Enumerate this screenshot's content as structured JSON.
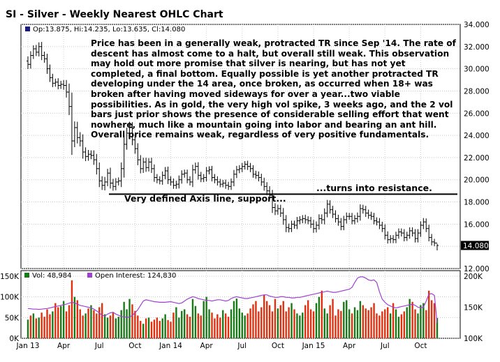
{
  "title": "SI - Silver - Weekly Nearest OHLC Chart",
  "price_header": "Op:13.875, Hi:14.235, Lo:13.635, Cl:14.080",
  "last_price_label": "14.080",
  "commentary": "Price has been in a generally weak, protracted TR since Sep '14.  The rate of descent has almost come to a halt, but overall still weak.  This observation may hold out more promise that silver is nearing, but has not yet completed, a final bottom.  Equally possible is yet another protracted TR developing under the 14 area, once broken, as occurred when 18+ was broken after having moved sideways for over a year...two viable possibilities.  As in gold, the very high vol spike, 3 weeks ago, and the 2 vol bars just prior shows the presence of considerable selling effort that went nowhere, much like a mountain going into labor and bearing an ant hill.  Overall price remains weak, regardless of very positive fundamentals.",
  "annotations": {
    "support": "Very defined Axis line, support...",
    "resistance": "...turns into resistance."
  },
  "volume_header": {
    "vol": "Vol: 48,984",
    "oi": "Open Interest: 124,830"
  },
  "colors": {
    "up_bar": "#1a7a1a",
    "down_bar": "#e03010",
    "open_interest": "#a040d0",
    "price_bar": "#000000",
    "axis_line": "#000000"
  },
  "chart_data": [
    {
      "type": "ohlc",
      "name": "price",
      "y_range": [
        12,
        34
      ],
      "y_ticks": [
        12,
        14,
        16,
        18,
        20,
        22,
        24,
        26,
        28,
        30,
        32,
        34
      ],
      "y_tick_labels": [
        "12.000",
        "14.000",
        "16.000",
        "18.000",
        "20.000",
        "22.000",
        "24.000",
        "26.000",
        "28.000",
        "30.000",
        "32.000",
        "34.000"
      ],
      "x_ticks": [
        "Jan 13",
        "Apr",
        "Jul",
        "Oct",
        "Jan 14",
        "Apr",
        "Jul",
        "Oct",
        "Jan 15",
        "Apr",
        "Jul",
        "Oct"
      ],
      "weeks": 150,
      "horizontal_line": 18.7,
      "last": {
        "open": 13.875,
        "high": 14.235,
        "low": 13.635,
        "close": 14.08
      },
      "closes": [
        30.4,
        31.2,
        31.8,
        31.5,
        32.0,
        31.2,
        30.9,
        30.0,
        29.2,
        28.7,
        28.8,
        28.5,
        28.6,
        28.5,
        27.9,
        26.6,
        23.5,
        24.7,
        23.8,
        23.5,
        22.5,
        22.1,
        22.3,
        22.2,
        21.8,
        21.0,
        19.9,
        19.5,
        19.8,
        20.6,
        19.7,
        19.4,
        19.8,
        19.9,
        21.0,
        23.2,
        24.2,
        24.7,
        23.6,
        22.8,
        21.8,
        21.0,
        21.6,
        21.1,
        21.6,
        21.0,
        20.2,
        20.0,
        19.9,
        20.4,
        20.8,
        20.0,
        19.8,
        19.5,
        19.6,
        20.0,
        20.5,
        20.6,
        20.0,
        19.8,
        20.9,
        21.2,
        20.4,
        20.1,
        20.2,
        20.8,
        20.9,
        20.2,
        20.0,
        19.8,
        19.6,
        19.7,
        19.5,
        19.4,
        19.8,
        20.5,
        20.9,
        21.0,
        21.2,
        21.4,
        21.2,
        21.0,
        20.5,
        20.4,
        20.2,
        19.8,
        19.4,
        19.0,
        18.6,
        17.5,
        17.2,
        17.4,
        17.0,
        16.4,
        15.7,
        15.6,
        16.0,
        15.9,
        16.3,
        16.4,
        16.5,
        16.4,
        16.3,
        16.0,
        15.6,
        15.9,
        16.5,
        16.4,
        17.0,
        17.8,
        17.3,
        16.9,
        16.5,
        16.2,
        15.8,
        16.4,
        16.7,
        16.7,
        16.3,
        16.5,
        16.7,
        17.4,
        17.3,
        17.0,
        16.8,
        16.7,
        16.3,
        16.2,
        15.9,
        15.6,
        15.0,
        14.6,
        14.7,
        14.6,
        15.0,
        15.3,
        15.2,
        14.8,
        15.0,
        15.4,
        15.2,
        14.7,
        15.2,
        15.9,
        16.2,
        15.6,
        14.8,
        14.4,
        14.3,
        14.08
      ],
      "ranges": [
        1.2,
        1.1,
        0.9,
        1.0,
        1.1,
        1.2,
        1.0,
        1.3,
        1.1,
        1.0,
        0.9,
        1.0,
        0.9,
        1.1,
        1.4,
        2.2,
        3.6,
        1.6,
        1.5,
        1.4,
        1.7,
        1.2,
        1.1,
        1.0,
        1.3,
        1.5,
        1.6,
        1.2,
        1.3,
        1.1,
        1.4,
        1.1,
        1.0,
        0.9,
        1.6,
        2.3,
        1.4,
        1.5,
        1.4,
        1.3,
        1.4,
        1.2,
        1.1,
        1.1,
        1.0,
        1.1,
        1.1,
        0.9,
        0.9,
        1.0,
        1.0,
        1.1,
        0.9,
        0.9,
        0.9,
        1.1,
        1.0,
        0.9,
        0.9,
        0.9,
        1.3,
        1.0,
        1.1,
        0.9,
        0.9,
        1.0,
        0.9,
        1.0,
        0.9,
        0.9,
        0.8,
        0.8,
        0.9,
        0.9,
        0.9,
        1.1,
        1.0,
        0.9,
        0.9,
        0.8,
        0.9,
        0.9,
        0.9,
        0.9,
        1.0,
        1.0,
        1.1,
        1.1,
        1.2,
        1.4,
        1.1,
        1.0,
        1.0,
        1.3,
        1.2,
        1.0,
        0.9,
        0.9,
        1.0,
        0.9,
        0.9,
        1.0,
        0.9,
        1.0,
        1.1,
        1.0,
        1.1,
        1.1,
        1.2,
        1.1,
        1.0,
        1.0,
        1.0,
        1.0,
        1.0,
        1.0,
        1.0,
        0.9,
        0.9,
        0.9,
        1.0,
        1.1,
        1.0,
        1.0,
        0.9,
        0.9,
        0.9,
        0.9,
        1.0,
        0.9,
        1.1,
        1.0,
        0.9,
        0.9,
        0.9,
        0.9,
        0.9,
        1.0,
        0.9,
        0.9,
        0.9,
        1.0,
        1.0,
        1.0,
        1.0,
        0.9,
        1.0,
        0.9,
        0.8,
        0.6
      ]
    },
    {
      "type": "bar",
      "name": "volume",
      "y_range": [
        0,
        150000
      ],
      "y_tick_labels": [
        "0K",
        "50K",
        "100K",
        "150K"
      ],
      "values": [
        45000,
        55000,
        60000,
        48000,
        50000,
        62000,
        52000,
        70000,
        58000,
        65000,
        85000,
        75000,
        78000,
        90000,
        65000,
        80000,
        140000,
        100000,
        92000,
        70000,
        55000,
        60000,
        72000,
        80000,
        68000,
        60000,
        75000,
        85000,
        58000,
        50000,
        55000,
        62000,
        48000,
        52000,
        68000,
        88000,
        70000,
        95000,
        82000,
        66000,
        55000,
        42000,
        35000,
        48000,
        50000,
        40000,
        45000,
        50000,
        42000,
        48000,
        58000,
        44000,
        40000,
        62000,
        75000,
        50000,
        66000,
        70000,
        58000,
        52000,
        95000,
        78000,
        60000,
        55000,
        90000,
        100000,
        70000,
        62000,
        48000,
        58000,
        50000,
        68000,
        60000,
        52000,
        70000,
        90000,
        96000,
        72000,
        62000,
        55000,
        60000,
        72000,
        82000,
        90000,
        65000,
        75000,
        105000,
        90000,
        80000,
        65000,
        95000,
        72000,
        80000,
        90000,
        65000,
        75000,
        85000,
        70000,
        60000,
        55000,
        62000,
        80000,
        92000,
        70000,
        65000,
        85000,
        100000,
        115000,
        72000,
        60000,
        80000,
        95000,
        55000,
        70000,
        66000,
        88000,
        92000,
        70000,
        60000,
        75000,
        68000,
        90000,
        80000,
        72000,
        68000,
        75000,
        85000,
        60000,
        55000,
        65000,
        70000,
        75000,
        60000,
        85000,
        70000,
        52000,
        58000,
        65000,
        75000,
        95000,
        88000,
        70000,
        60000,
        80000,
        85000,
        68000,
        115000,
        92000,
        85000,
        48984
      ],
      "up": [
        1,
        0,
        1,
        0,
        1,
        0,
        0,
        0,
        0,
        1,
        0,
        0,
        1,
        1,
        0,
        0,
        0,
        1,
        0,
        0,
        0,
        1,
        0,
        1,
        0,
        0,
        0,
        0,
        1,
        1,
        0,
        0,
        1,
        1,
        1,
        1,
        1,
        1,
        0,
        0,
        0,
        0,
        1,
        0,
        1,
        0,
        0,
        0,
        0,
        1,
        1,
        0,
        0,
        0,
        1,
        1,
        1,
        1,
        0,
        0,
        1,
        1,
        0,
        0,
        1,
        1,
        1,
        0,
        0,
        0,
        0,
        1,
        0,
        0,
        1,
        1,
        1,
        1,
        1,
        1,
        0,
        0,
        0,
        0,
        0,
        0,
        0,
        0,
        0,
        0,
        0,
        1,
        0,
        0,
        0,
        0,
        1,
        0,
        1,
        1,
        1,
        0,
        0,
        0,
        0,
        1,
        1,
        0,
        1,
        1,
        0,
        0,
        0,
        0,
        0,
        1,
        1,
        1,
        0,
        1,
        1,
        1,
        0,
        0,
        0,
        0,
        0,
        0,
        0,
        0,
        0,
        0,
        1,
        0,
        1,
        1,
        0,
        0,
        1,
        1,
        0,
        0,
        1,
        1,
        1,
        0,
        0,
        0,
        0,
        1
      ]
    },
    {
      "type": "line",
      "name": "open_interest",
      "y_range": [
        100000,
        200000
      ],
      "y_tick_labels": [
        "100K",
        "150K",
        "200K"
      ],
      "values": [
        148000,
        147500,
        147000,
        147000,
        146500,
        147000,
        147500,
        148000,
        149000,
        150000,
        151000,
        152000,
        153000,
        154000,
        155000,
        156500,
        158000,
        157000,
        155000,
        153000,
        152000,
        151000,
        150000,
        149000,
        147000,
        144000,
        141000,
        137000,
        136000,
        139000,
        141000,
        142000,
        139000,
        137000,
        135000,
        134500,
        134000,
        134000,
        137000,
        141000,
        146000,
        153000,
        160000,
        162000,
        161000,
        160000,
        159000,
        158500,
        158000,
        158000,
        158000,
        158500,
        159000,
        158000,
        157000,
        156000,
        157000,
        160000,
        163000,
        165000,
        167000,
        166000,
        164000,
        163000,
        162000,
        161000,
        161000,
        160000,
        161000,
        162000,
        162000,
        161000,
        160000,
        161000,
        164000,
        166000,
        167000,
        166000,
        165000,
        164000,
        164000,
        165000,
        166000,
        167000,
        168000,
        169000,
        170000,
        170000,
        168000,
        167000,
        166000,
        166000,
        167000,
        167000,
        166000,
        166000,
        165000,
        165000,
        166000,
        166000,
        167000,
        168000,
        169000,
        170000,
        171000,
        172000,
        173000,
        174000,
        175000,
        176000,
        175000,
        174000,
        174000,
        175000,
        176000,
        177000,
        178000,
        179000,
        182000,
        190000,
        197000,
        199000,
        199000,
        197000,
        194000,
        193000,
        194000,
        190000,
        175000,
        163000,
        158000,
        154000,
        152000,
        150000,
        149000,
        150000,
        151000,
        152000,
        153000,
        154000,
        155000,
        153000,
        150000,
        149000,
        150000,
        160000,
        171000,
        172000,
        169000,
        124830
      ]
    }
  ]
}
